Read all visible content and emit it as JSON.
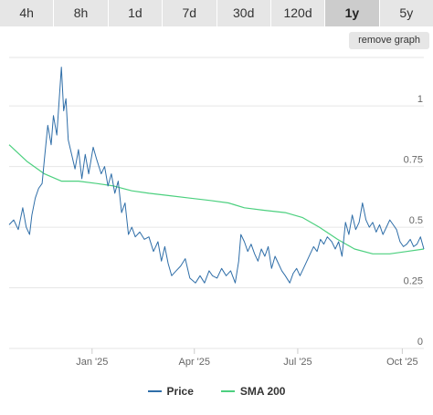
{
  "tabs": [
    {
      "label": "4h",
      "active": false
    },
    {
      "label": "8h",
      "active": false
    },
    {
      "label": "1d",
      "active": false
    },
    {
      "label": "7d",
      "active": false
    },
    {
      "label": "30d",
      "active": false
    },
    {
      "label": "120d",
      "active": false
    },
    {
      "label": "1y",
      "active": true
    },
    {
      "label": "5y",
      "active": false
    }
  ],
  "remove_graph_label": "remove graph",
  "chart_data": {
    "type": "line",
    "x_range": [
      "2024-10-20",
      "2025-10-20"
    ],
    "x_ticks": [
      {
        "label": "Jan '25",
        "date": "2025-01-01"
      },
      {
        "label": "Apr '25",
        "date": "2025-04-01"
      },
      {
        "label": "Jul '25",
        "date": "2025-07-01"
      },
      {
        "label": "Oct '25",
        "date": "2025-10-01"
      }
    ],
    "y_ticks": [
      "0",
      "0.25",
      "0.5",
      "0.75",
      "1"
    ],
    "ylim": [
      0,
      1.2
    ],
    "grid": true,
    "legend_position": "bottom",
    "series": [
      {
        "name": "Price",
        "color": "#2f6ea8",
        "points": [
          [
            "2024-10-20",
            0.51
          ],
          [
            "2024-10-24",
            0.53
          ],
          [
            "2024-10-28",
            0.49
          ],
          [
            "2024-11-01",
            0.58
          ],
          [
            "2024-11-04",
            0.5
          ],
          [
            "2024-11-07",
            0.47
          ],
          [
            "2024-11-09",
            0.55
          ],
          [
            "2024-11-12",
            0.62
          ],
          [
            "2024-11-15",
            0.66
          ],
          [
            "2024-11-18",
            0.68
          ],
          [
            "2024-11-20",
            0.78
          ],
          [
            "2024-11-23",
            0.92
          ],
          [
            "2024-11-26",
            0.84
          ],
          [
            "2024-11-28",
            0.96
          ],
          [
            "2024-12-01",
            0.88
          ],
          [
            "2024-12-03",
            1.02
          ],
          [
            "2024-12-05",
            1.16
          ],
          [
            "2024-12-07",
            0.98
          ],
          [
            "2024-12-09",
            1.03
          ],
          [
            "2024-12-11",
            0.86
          ],
          [
            "2024-12-14",
            0.8
          ],
          [
            "2024-12-17",
            0.74
          ],
          [
            "2024-12-20",
            0.82
          ],
          [
            "2024-12-23",
            0.7
          ],
          [
            "2024-12-26",
            0.8
          ],
          [
            "2024-12-29",
            0.72
          ],
          [
            "2025-01-02",
            0.83
          ],
          [
            "2025-01-05",
            0.78
          ],
          [
            "2025-01-09",
            0.72
          ],
          [
            "2025-01-12",
            0.75
          ],
          [
            "2025-01-15",
            0.67
          ],
          [
            "2025-01-18",
            0.72
          ],
          [
            "2025-01-21",
            0.64
          ],
          [
            "2025-01-24",
            0.69
          ],
          [
            "2025-01-27",
            0.56
          ],
          [
            "2025-01-30",
            0.6
          ],
          [
            "2025-02-02",
            0.47
          ],
          [
            "2025-02-05",
            0.5
          ],
          [
            "2025-02-08",
            0.46
          ],
          [
            "2025-02-12",
            0.48
          ],
          [
            "2025-02-16",
            0.45
          ],
          [
            "2025-02-20",
            0.46
          ],
          [
            "2025-02-24",
            0.4
          ],
          [
            "2025-02-28",
            0.44
          ],
          [
            "2025-03-03",
            0.36
          ],
          [
            "2025-03-06",
            0.42
          ],
          [
            "2025-03-09",
            0.35
          ],
          [
            "2025-03-12",
            0.3
          ],
          [
            "2025-03-16",
            0.32
          ],
          [
            "2025-03-20",
            0.34
          ],
          [
            "2025-03-24",
            0.37
          ],
          [
            "2025-03-28",
            0.29
          ],
          [
            "2025-04-02",
            0.27
          ],
          [
            "2025-04-06",
            0.3
          ],
          [
            "2025-04-10",
            0.27
          ],
          [
            "2025-04-14",
            0.32
          ],
          [
            "2025-04-17",
            0.3
          ],
          [
            "2025-04-21",
            0.29
          ],
          [
            "2025-04-25",
            0.33
          ],
          [
            "2025-04-29",
            0.3
          ],
          [
            "2025-05-03",
            0.32
          ],
          [
            "2025-05-07",
            0.27
          ],
          [
            "2025-05-10",
            0.36
          ],
          [
            "2025-05-12",
            0.47
          ],
          [
            "2025-05-15",
            0.44
          ],
          [
            "2025-05-18",
            0.4
          ],
          [
            "2025-05-21",
            0.43
          ],
          [
            "2025-05-24",
            0.39
          ],
          [
            "2025-05-27",
            0.36
          ],
          [
            "2025-05-30",
            0.41
          ],
          [
            "2025-06-02",
            0.38
          ],
          [
            "2025-06-05",
            0.42
          ],
          [
            "2025-06-08",
            0.33
          ],
          [
            "2025-06-11",
            0.38
          ],
          [
            "2025-06-14",
            0.35
          ],
          [
            "2025-06-17",
            0.32
          ],
          [
            "2025-06-20",
            0.3
          ],
          [
            "2025-06-24",
            0.27
          ],
          [
            "2025-06-27",
            0.31
          ],
          [
            "2025-06-30",
            0.33
          ],
          [
            "2025-07-03",
            0.3
          ],
          [
            "2025-07-06",
            0.33
          ],
          [
            "2025-07-09",
            0.36
          ],
          [
            "2025-07-12",
            0.39
          ],
          [
            "2025-07-15",
            0.42
          ],
          [
            "2025-07-18",
            0.4
          ],
          [
            "2025-07-21",
            0.45
          ],
          [
            "2025-07-24",
            0.43
          ],
          [
            "2025-07-27",
            0.46
          ],
          [
            "2025-07-31",
            0.44
          ],
          [
            "2025-08-03",
            0.41
          ],
          [
            "2025-08-06",
            0.44
          ],
          [
            "2025-08-09",
            0.38
          ],
          [
            "2025-08-12",
            0.52
          ],
          [
            "2025-08-15",
            0.47
          ],
          [
            "2025-08-18",
            0.55
          ],
          [
            "2025-08-21",
            0.49
          ],
          [
            "2025-08-24",
            0.52
          ],
          [
            "2025-08-27",
            0.6
          ],
          [
            "2025-08-30",
            0.53
          ],
          [
            "2025-09-02",
            0.5
          ],
          [
            "2025-09-05",
            0.52
          ],
          [
            "2025-09-08",
            0.48
          ],
          [
            "2025-09-11",
            0.51
          ],
          [
            "2025-09-14",
            0.47
          ],
          [
            "2025-09-17",
            0.5
          ],
          [
            "2025-09-20",
            0.53
          ],
          [
            "2025-09-23",
            0.51
          ],
          [
            "2025-09-26",
            0.49
          ],
          [
            "2025-09-29",
            0.44
          ],
          [
            "2025-10-02",
            0.42
          ],
          [
            "2025-10-05",
            0.43
          ],
          [
            "2025-10-08",
            0.45
          ],
          [
            "2025-10-11",
            0.42
          ],
          [
            "2025-10-14",
            0.43
          ],
          [
            "2025-10-17",
            0.46
          ],
          [
            "2025-10-20",
            0.41
          ]
        ]
      },
      {
        "name": "SMA 200",
        "color": "#4cd07f",
        "points": [
          [
            "2024-10-20",
            0.84
          ],
          [
            "2024-11-05",
            0.77
          ],
          [
            "2024-11-20",
            0.72
          ],
          [
            "2024-12-05",
            0.69
          ],
          [
            "2024-12-20",
            0.69
          ],
          [
            "2025-01-05",
            0.68
          ],
          [
            "2025-01-20",
            0.67
          ],
          [
            "2025-02-05",
            0.65
          ],
          [
            "2025-02-20",
            0.64
          ],
          [
            "2025-03-10",
            0.63
          ],
          [
            "2025-03-28",
            0.62
          ],
          [
            "2025-04-15",
            0.61
          ],
          [
            "2025-05-01",
            0.6
          ],
          [
            "2025-05-15",
            0.58
          ],
          [
            "2025-06-01",
            0.57
          ],
          [
            "2025-06-20",
            0.56
          ],
          [
            "2025-07-05",
            0.54
          ],
          [
            "2025-07-20",
            0.5
          ],
          [
            "2025-08-05",
            0.45
          ],
          [
            "2025-08-20",
            0.41
          ],
          [
            "2025-09-05",
            0.39
          ],
          [
            "2025-09-20",
            0.39
          ],
          [
            "2025-10-05",
            0.4
          ],
          [
            "2025-10-20",
            0.41
          ]
        ]
      }
    ]
  },
  "legend": {
    "price_label": "Price",
    "sma_label": "SMA 200"
  }
}
